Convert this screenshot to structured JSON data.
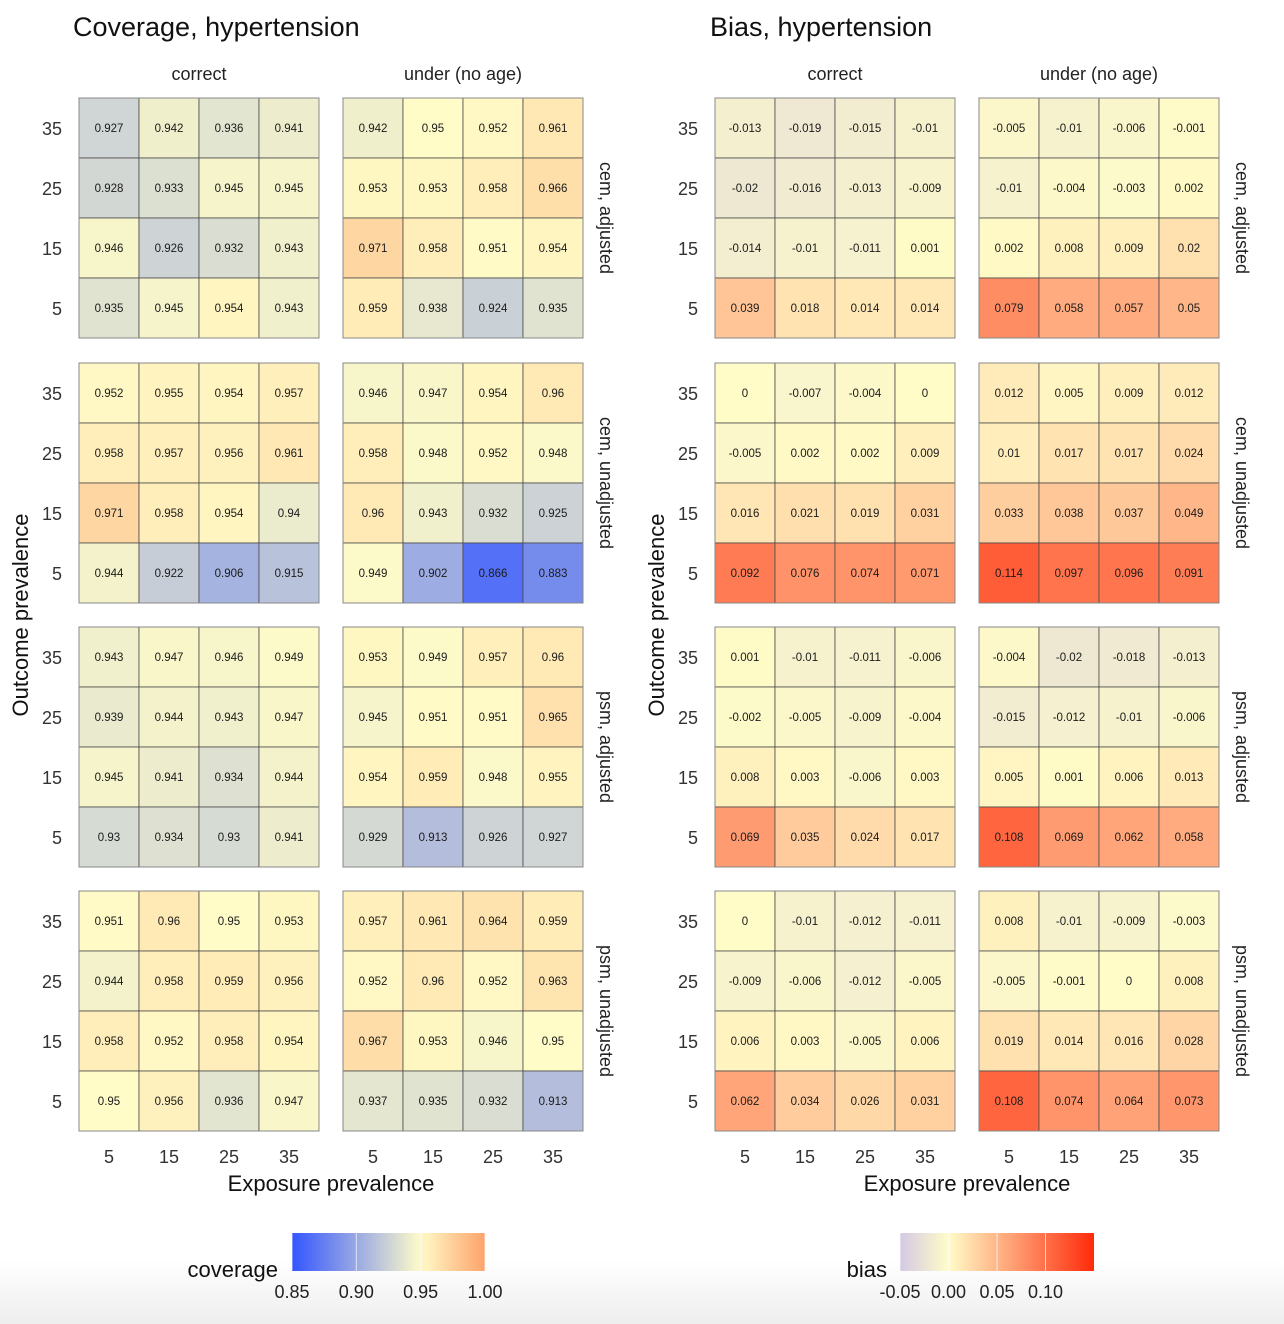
{
  "chart_data": [
    {
      "type": "heatmap",
      "title": "Coverage, hypertension",
      "xlabel": "Exposure prevalence",
      "ylabel": "Outcome prevalence",
      "x": [
        "5",
        "15",
        "25",
        "35"
      ],
      "y": [
        "5",
        "15",
        "25",
        "35"
      ],
      "columns": [
        "correct",
        "under (no age)"
      ],
      "rows": [
        "cem, adjusted",
        "cem, unadjusted",
        "psm, adjusted",
        "psm, unadjusted"
      ],
      "note": "values[row][col] listed top-to-bottom by outcome prevalence 35,25,15,5; each inner array is exposure 5,15,25,35",
      "values": [
        [
          [
            [
              0.927,
              0.942,
              0.936,
              0.941
            ],
            [
              0.928,
              0.933,
              0.945,
              0.945
            ],
            [
              0.946,
              0.926,
              0.932,
              0.943
            ],
            [
              0.935,
              0.945,
              0.954,
              0.943
            ]
          ],
          [
            [
              0.942,
              0.95,
              0.952,
              0.961
            ],
            [
              0.953,
              0.953,
              0.958,
              0.966
            ],
            [
              0.971,
              0.958,
              0.951,
              0.954
            ],
            [
              0.959,
              0.938,
              0.924,
              0.935
            ]
          ]
        ],
        [
          [
            [
              0.952,
              0.955,
              0.954,
              0.957
            ],
            [
              0.958,
              0.957,
              0.956,
              0.961
            ],
            [
              0.971,
              0.958,
              0.954,
              0.94
            ],
            [
              0.944,
              0.922,
              0.906,
              0.915
            ]
          ],
          [
            [
              0.946,
              0.947,
              0.954,
              0.96
            ],
            [
              0.958,
              0.948,
              0.952,
              0.948
            ],
            [
              0.96,
              0.943,
              0.932,
              0.925
            ],
            [
              0.949,
              0.902,
              0.866,
              0.883
            ]
          ]
        ],
        [
          [
            [
              0.943,
              0.947,
              0.946,
              0.949
            ],
            [
              0.939,
              0.944,
              0.943,
              0.947
            ],
            [
              0.945,
              0.941,
              0.934,
              0.944
            ],
            [
              0.93,
              0.934,
              0.93,
              0.941
            ]
          ],
          [
            [
              0.953,
              0.949,
              0.957,
              0.96
            ],
            [
              0.945,
              0.951,
              0.951,
              0.965
            ],
            [
              0.954,
              0.959,
              0.948,
              0.955
            ],
            [
              0.929,
              0.913,
              0.926,
              0.927
            ]
          ]
        ],
        [
          [
            [
              0.951,
              0.96,
              0.95,
              0.953
            ],
            [
              0.944,
              0.958,
              0.959,
              0.956
            ],
            [
              0.958,
              0.952,
              0.958,
              0.954
            ],
            [
              0.95,
              0.956,
              0.936,
              0.947
            ]
          ],
          [
            [
              0.957,
              0.961,
              0.964,
              0.959
            ],
            [
              0.952,
              0.96,
              0.952,
              0.963
            ],
            [
              0.967,
              0.953,
              0.946,
              0.95
            ],
            [
              0.937,
              0.935,
              0.932,
              0.913
            ]
          ]
        ]
      ],
      "legend": {
        "title": "coverage",
        "position": "bottom",
        "ticks": [
          "0.85",
          "0.90",
          "0.95",
          "1.00"
        ],
        "range": [
          0.85,
          1.0
        ],
        "midpoint": 0.95,
        "colors": {
          "low": "#3355ff",
          "mid": "#fffcc8",
          "high": "#fda26b"
        }
      }
    },
    {
      "type": "heatmap",
      "title": "Bias, hypertension",
      "xlabel": "Exposure prevalence",
      "ylabel": "Outcome prevalence",
      "x": [
        "5",
        "15",
        "25",
        "35"
      ],
      "y": [
        "5",
        "15",
        "25",
        "35"
      ],
      "columns": [
        "correct",
        "under (no age)"
      ],
      "rows": [
        "cem, adjusted",
        "cem, unadjusted",
        "psm, adjusted",
        "psm, unadjusted"
      ],
      "note": "values[row][col] listed top-to-bottom by outcome prevalence 35,25,15,5; each inner array is exposure 5,15,25,35",
      "values": [
        [
          [
            [
              -0.013,
              -0.019,
              -0.015,
              -0.01
            ],
            [
              -0.02,
              -0.016,
              -0.013,
              -0.009
            ],
            [
              -0.014,
              -0.01,
              -0.011,
              0.001
            ],
            [
              0.039,
              0.018,
              0.014,
              0.014
            ]
          ],
          [
            [
              -0.005,
              -0.01,
              -0.006,
              -0.001
            ],
            [
              -0.01,
              -0.004,
              -0.003,
              0.002
            ],
            [
              0.002,
              0.008,
              0.009,
              0.02
            ],
            [
              0.079,
              0.058,
              0.057,
              0.05
            ]
          ]
        ],
        [
          [
            [
              0,
              -0.007,
              -0.004,
              0
            ],
            [
              -0.005,
              0.002,
              0.002,
              0.009
            ],
            [
              0.016,
              0.021,
              0.019,
              0.031
            ],
            [
              0.092,
              0.076,
              0.074,
              0.071
            ]
          ],
          [
            [
              0.012,
              0.005,
              0.009,
              0.012
            ],
            [
              0.01,
              0.017,
              0.017,
              0.024
            ],
            [
              0.033,
              0.038,
              0.037,
              0.049
            ],
            [
              0.114,
              0.097,
              0.096,
              0.091
            ]
          ]
        ],
        [
          [
            [
              0.001,
              -0.01,
              -0.011,
              -0.006
            ],
            [
              -0.002,
              -0.005,
              -0.009,
              -0.004
            ],
            [
              0.008,
              0.003,
              -0.006,
              0.003
            ],
            [
              0.069,
              0.035,
              0.024,
              0.017
            ]
          ],
          [
            [
              -0.004,
              -0.02,
              -0.018,
              -0.013
            ],
            [
              -0.015,
              -0.012,
              -0.01,
              -0.006
            ],
            [
              0.005,
              0.001,
              0.006,
              0.013
            ],
            [
              0.108,
              0.069,
              0.062,
              0.058
            ]
          ]
        ],
        [
          [
            [
              0,
              -0.01,
              -0.012,
              -0.011
            ],
            [
              -0.009,
              -0.006,
              -0.012,
              -0.005
            ],
            [
              0.006,
              0.003,
              -0.005,
              0.006
            ],
            [
              0.062,
              0.034,
              0.026,
              0.031
            ]
          ],
          [
            [
              0.008,
              -0.01,
              -0.009,
              -0.003
            ],
            [
              -0.005,
              -0.001,
              0,
              0.008
            ],
            [
              0.019,
              0.014,
              0.016,
              0.028
            ],
            [
              0.108,
              0.074,
              0.064,
              0.073
            ]
          ]
        ]
      ],
      "legend": {
        "title": "bias",
        "position": "bottom",
        "ticks": [
          "-0.05",
          "0.00",
          "0.05",
          "0.10"
        ],
        "range": [
          -0.05,
          0.15
        ],
        "midpoint": 0.0,
        "colors": {
          "low": "#d4c9e4",
          "mid": "#fffcc8",
          "high": "#ff2a0a"
        }
      }
    }
  ]
}
